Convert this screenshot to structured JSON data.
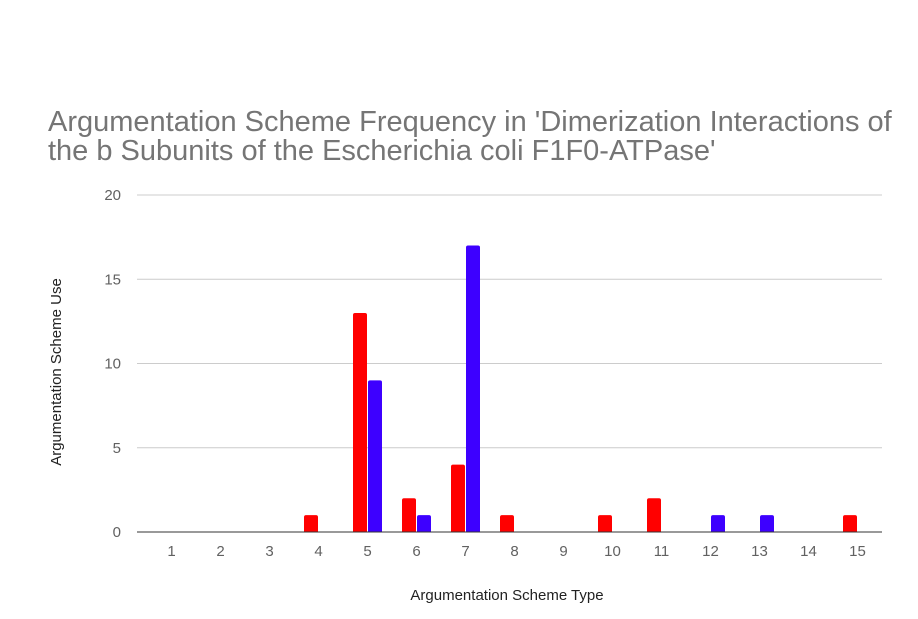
{
  "chart_data": {
    "type": "bar",
    "title": "Argumentation Scheme Frequency in 'Dimerization Interactions of the b Subunits of the Escherichia coli F1F0-ATPase'",
    "xlabel": "Argumentation Scheme Type",
    "ylabel": "Argumentation Scheme Use",
    "categories": [
      "1",
      "2",
      "3",
      "4",
      "5",
      "6",
      "7",
      "8",
      "9",
      "10",
      "11",
      "12",
      "13",
      "14",
      "15"
    ],
    "ylim": [
      0,
      20
    ],
    "yticks": [
      0,
      5,
      10,
      15,
      20
    ],
    "grid": true,
    "legend": "none",
    "series": [
      {
        "values": [
          0,
          0,
          0,
          1,
          13,
          2,
          4,
          1,
          0,
          1,
          2,
          0,
          0,
          0,
          1
        ],
        "color": "#ff0000"
      },
      {
        "values": [
          0,
          0,
          0,
          0,
          9,
          1,
          17,
          0,
          0,
          0,
          0,
          1,
          1,
          0,
          0
        ],
        "color": "#3d00ff"
      }
    ]
  }
}
